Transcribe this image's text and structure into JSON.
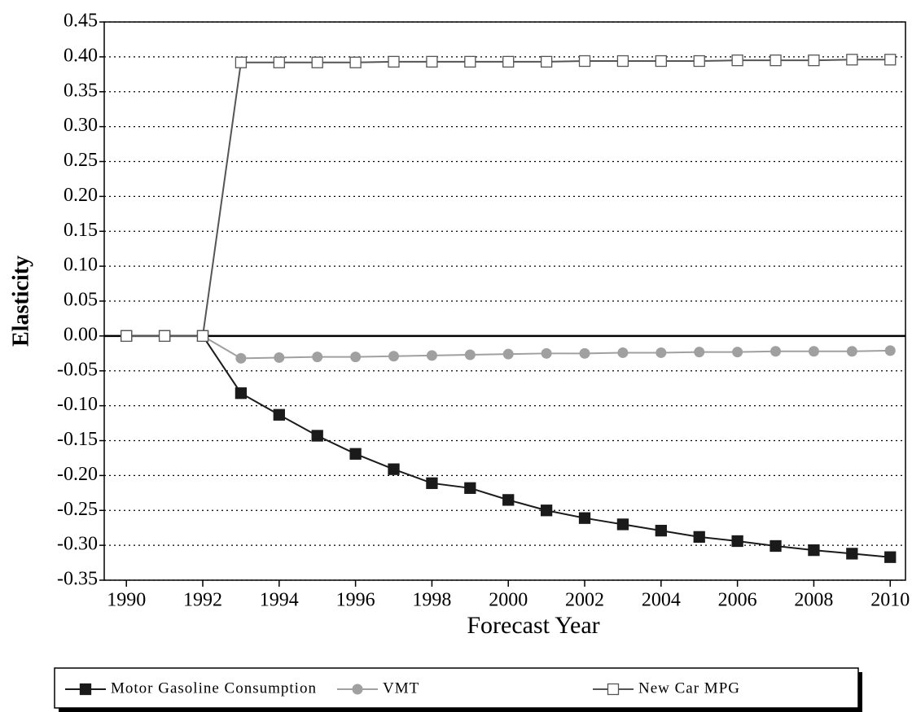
{
  "chart_data": {
    "type": "line",
    "x_label": "Forecast Year",
    "y_label": "Elasticity",
    "x": [
      1990,
      1991,
      1992,
      1993,
      1994,
      1995,
      1996,
      1997,
      1998,
      1999,
      2000,
      2001,
      2002,
      2003,
      2004,
      2005,
      2006,
      2007,
      2008,
      2009,
      2010
    ],
    "series": [
      {
        "name": "Motor Gasoline Consumption",
        "color": "#1a1a1a",
        "marker": "square",
        "values": [
          0,
          0,
          0,
          -0.082,
          -0.113,
          -0.143,
          -0.169,
          -0.191,
          -0.211,
          -0.218,
          -0.235,
          -0.25,
          -0.261,
          -0.27,
          -0.279,
          -0.288,
          -0.294,
          -0.301,
          -0.307,
          -0.312,
          -0.317
        ]
      },
      {
        "name": "VMT",
        "color": "#a0a0a0",
        "marker": "circle",
        "values": [
          0,
          0,
          0,
          -0.032,
          -0.031,
          -0.03,
          -0.03,
          -0.029,
          -0.028,
          -0.027,
          -0.026,
          -0.025,
          -0.025,
          -0.024,
          -0.024,
          -0.023,
          -0.023,
          -0.022,
          -0.022,
          -0.022,
          -0.021
        ]
      },
      {
        "name": "New Car MPG",
        "color": "#555555",
        "marker": "open-square",
        "values": [
          0,
          0,
          0,
          0.392,
          0.392,
          0.392,
          0.392,
          0.393,
          0.393,
          0.393,
          0.393,
          0.393,
          0.394,
          0.394,
          0.394,
          0.394,
          0.395,
          0.395,
          0.395,
          0.396,
          0.396
        ]
      }
    ],
    "xlim": [
      1989.42,
      2010.4
    ],
    "xticks": [
      1990,
      1992,
      1994,
      1996,
      1998,
      2000,
      2002,
      2004,
      2006,
      2008,
      2010
    ],
    "ylim": [
      -0.35,
      0.45
    ],
    "yticks": [
      -0.35,
      {
        "value": -0.3,
        "label": "-0.30"
      },
      -0.25,
      {
        "value": -0.2,
        "label": "-0.20"
      },
      -0.15,
      {
        "value": -0.1,
        "label": "-0.10"
      },
      -0.05,
      {
        "value": 0,
        "label": "0.00"
      },
      0.05,
      {
        "value": 0.1,
        "label": "0.10"
      },
      0.15,
      {
        "value": 0.2,
        "label": "0.20"
      },
      0.25,
      {
        "value": 0.3,
        "label": "0.30"
      },
      0.35,
      {
        "value": 0.4,
        "label": "0.40"
      },
      0.45
    ],
    "grid": true,
    "legend": "bottom"
  }
}
